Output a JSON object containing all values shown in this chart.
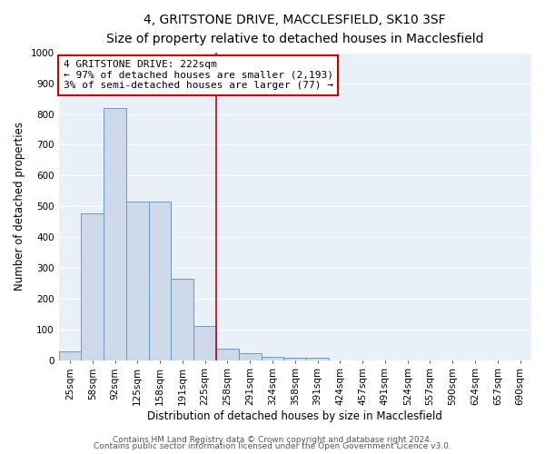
{
  "title": "4, GRITSTONE DRIVE, MACCLESFIELD, SK10 3SF",
  "subtitle": "Size of property relative to detached houses in Macclesfield",
  "xlabel": "Distribution of detached houses by size in Macclesfield",
  "ylabel": "Number of detached properties",
  "bar_color": "#cdd9e8",
  "bar_edge_color": "#6699cc",
  "bins": [
    "25sqm",
    "58sqm",
    "92sqm",
    "125sqm",
    "158sqm",
    "191sqm",
    "225sqm",
    "258sqm",
    "291sqm",
    "324sqm",
    "358sqm",
    "391sqm",
    "424sqm",
    "457sqm",
    "491sqm",
    "524sqm",
    "557sqm",
    "590sqm",
    "624sqm",
    "657sqm",
    "690sqm"
  ],
  "values": [
    28,
    478,
    820,
    515,
    515,
    265,
    110,
    38,
    22,
    12,
    8,
    8,
    0,
    0,
    0,
    0,
    0,
    0,
    0,
    0,
    0
  ],
  "property_line_bin_index": 6,
  "annotation_line1": "4 GRITSTONE DRIVE: 222sqm",
  "annotation_line2": "← 97% of detached houses are smaller (2,193)",
  "annotation_line3": "3% of semi-detached houses are larger (77) →",
  "annotation_box_color": "white",
  "annotation_box_edge": "#cc0000",
  "vline_color": "#cc0000",
  "ylim": [
    0,
    1000
  ],
  "yticks": [
    0,
    100,
    200,
    300,
    400,
    500,
    600,
    700,
    800,
    900,
    1000
  ],
  "footer1": "Contains HM Land Registry data © Crown copyright and database right 2024.",
  "footer2": "Contains public sector information licensed under the Open Government Licence v3.0.",
  "plot_bg_color": "#eaf0f8",
  "title_fontsize": 10,
  "subtitle_fontsize": 9,
  "axis_label_fontsize": 8.5,
  "tick_fontsize": 7.5,
  "annotation_fontsize": 8,
  "footer_fontsize": 6.5
}
